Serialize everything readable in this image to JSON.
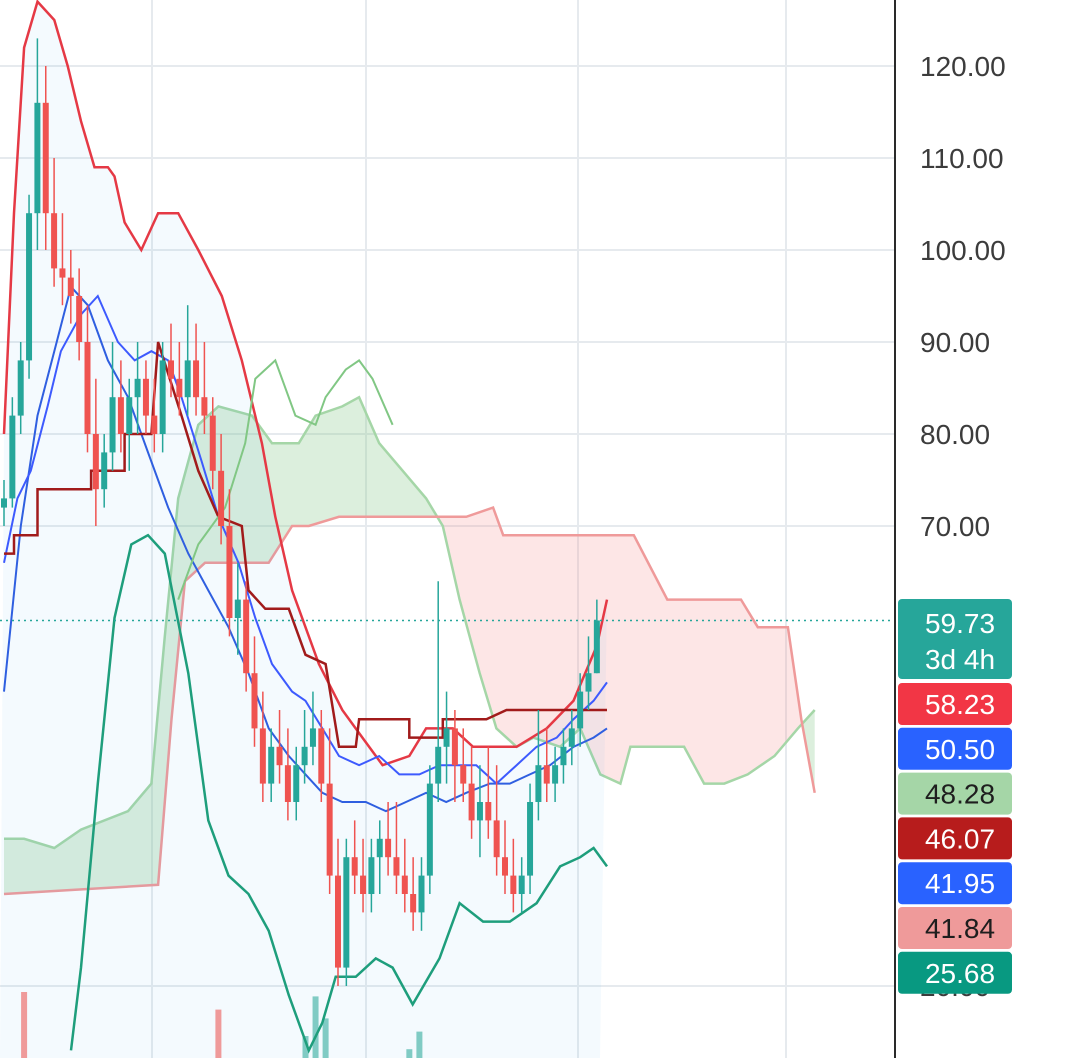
{
  "chart_data": {
    "type": "candlestick",
    "price_axis": {
      "ticks": [
        "120.00",
        "110.00",
        "100.00",
        "90.00",
        "80.00",
        "70.00",
        "20.00"
      ],
      "tick_values": [
        120,
        110,
        100,
        90,
        80,
        70,
        20
      ],
      "range": [
        13,
        127
      ]
    },
    "last_price": {
      "value": "59.73",
      "countdown": "3d 4h",
      "color": "#26a69a"
    },
    "indicator_badges": [
      {
        "value": "58.23",
        "bg": "#f23645",
        "fg": "#ffffff"
      },
      {
        "value": "50.50",
        "bg": "#2962ff",
        "fg": "#ffffff"
      },
      {
        "value": "48.28",
        "bg": "#a5d6a7",
        "fg": "#1e1e1e"
      },
      {
        "value": "46.07",
        "bg": "#b71c1c",
        "fg": "#ffffff"
      },
      {
        "value": "41.95",
        "bg": "#2962ff",
        "fg": "#ffffff"
      },
      {
        "value": "41.84",
        "bg": "#ef9a9a",
        "fg": "#1e1e1e"
      },
      {
        "value": "25.68",
        "bg": "#089981",
        "fg": "#ffffff"
      }
    ],
    "candles": [
      [
        72,
        75,
        70,
        73
      ],
      [
        73,
        84,
        72,
        82
      ],
      [
        82,
        90,
        80,
        88
      ],
      [
        88,
        106,
        86,
        104
      ],
      [
        104,
        123,
        100,
        116
      ],
      [
        116,
        120,
        100,
        104
      ],
      [
        104,
        110,
        96,
        98
      ],
      [
        98,
        104,
        94,
        97
      ],
      [
        97,
        100,
        92,
        95
      ],
      [
        95,
        98,
        88,
        90
      ],
      [
        90,
        94,
        78,
        80
      ],
      [
        80,
        86,
        70,
        74
      ],
      [
        74,
        80,
        72,
        78
      ],
      [
        78,
        90,
        76,
        84
      ],
      [
        84,
        88,
        78,
        80
      ],
      [
        80,
        86,
        76,
        84
      ],
      [
        84,
        90,
        80,
        86
      ],
      [
        86,
        88,
        80,
        82
      ],
      [
        82,
        86,
        78,
        80
      ],
      [
        80,
        90,
        78,
        88
      ],
      [
        88,
        92,
        84,
        86
      ],
      [
        86,
        90,
        82,
        84
      ],
      [
        84,
        94,
        82,
        88
      ],
      [
        88,
        92,
        82,
        84
      ],
      [
        84,
        90,
        80,
        82
      ],
      [
        82,
        84,
        74,
        76
      ],
      [
        76,
        80,
        68,
        70
      ],
      [
        70,
        74,
        58,
        60
      ],
      [
        60,
        66,
        56,
        62
      ],
      [
        62,
        64,
        52,
        54
      ],
      [
        54,
        58,
        46,
        48
      ],
      [
        48,
        52,
        40,
        42
      ],
      [
        42,
        48,
        40,
        46
      ],
      [
        46,
        50,
        42,
        44
      ],
      [
        44,
        48,
        38,
        40
      ],
      [
        40,
        46,
        38,
        44
      ],
      [
        44,
        50,
        42,
        46
      ],
      [
        46,
        52,
        44,
        48
      ],
      [
        48,
        50,
        40,
        42
      ],
      [
        42,
        48,
        30,
        32
      ],
      [
        32,
        36,
        20,
        22
      ],
      [
        22,
        36,
        20,
        34
      ],
      [
        34,
        38,
        30,
        32
      ],
      [
        32,
        36,
        28,
        30
      ],
      [
        30,
        36,
        28,
        34
      ],
      [
        34,
        38,
        30,
        36
      ],
      [
        36,
        40,
        32,
        34
      ],
      [
        34,
        40,
        30,
        32
      ],
      [
        32,
        36,
        28,
        30
      ],
      [
        30,
        34,
        26,
        28
      ],
      [
        28,
        34,
        26,
        32
      ],
      [
        32,
        44,
        30,
        42
      ],
      [
        42,
        64,
        40,
        46
      ],
      [
        46,
        52,
        42,
        48
      ],
      [
        48,
        50,
        40,
        44
      ],
      [
        44,
        48,
        40,
        42
      ],
      [
        42,
        46,
        36,
        38
      ],
      [
        38,
        44,
        34,
        40
      ],
      [
        40,
        46,
        36,
        38
      ],
      [
        38,
        44,
        32,
        34
      ],
      [
        34,
        38,
        30,
        32
      ],
      [
        32,
        36,
        28,
        30
      ],
      [
        30,
        34,
        28,
        32
      ],
      [
        32,
        42,
        30,
        40
      ],
      [
        40,
        50,
        38,
        44
      ],
      [
        44,
        48,
        40,
        42
      ],
      [
        42,
        46,
        40,
        44
      ],
      [
        44,
        48,
        42,
        46
      ],
      [
        46,
        50,
        44,
        48
      ],
      [
        48,
        54,
        46,
        52
      ],
      [
        52,
        58,
        50,
        54
      ],
      [
        54,
        62,
        54,
        59.73
      ]
    ],
    "bb_upper": [
      [
        0,
        80
      ],
      [
        0.3,
        104
      ],
      [
        0.6,
        122
      ],
      [
        1.0,
        127
      ],
      [
        1.5,
        125
      ],
      [
        1.9,
        120
      ],
      [
        2.3,
        114
      ],
      [
        2.7,
        109
      ],
      [
        3.1,
        109
      ],
      [
        3.3,
        108
      ],
      [
        3.6,
        103
      ],
      [
        4.1,
        100
      ],
      [
        4.6,
        104
      ],
      [
        5.2,
        104
      ],
      [
        5.8,
        100
      ],
      [
        6.5,
        95
      ],
      [
        7.1,
        88
      ],
      [
        7.7,
        79
      ],
      [
        8.1,
        71
      ],
      [
        8.6,
        63
      ],
      [
        9.4,
        55
      ],
      [
        10.1,
        50
      ],
      [
        10.7,
        47
      ],
      [
        11.3,
        44
      ],
      [
        12.1,
        45
      ],
      [
        12.6,
        48
      ],
      [
        13.4,
        48
      ],
      [
        14.0,
        46
      ],
      [
        14.6,
        46
      ],
      [
        15.3,
        46
      ],
      [
        16.2,
        48
      ],
      [
        17.0,
        51
      ],
      [
        17.7,
        57
      ],
      [
        18.0,
        62
      ]
    ],
    "bb_middle": [
      [
        0,
        52
      ],
      [
        0.5,
        70
      ],
      [
        1.0,
        82
      ],
      [
        1.5,
        89
      ],
      [
        2.0,
        96
      ],
      [
        2.5,
        94
      ],
      [
        3.1,
        88
      ],
      [
        3.7,
        84
      ],
      [
        4.3,
        78
      ],
      [
        4.9,
        72
      ],
      [
        5.5,
        67
      ],
      [
        6.1,
        63
      ],
      [
        6.7,
        59
      ],
      [
        7.3,
        54
      ],
      [
        7.9,
        48
      ],
      [
        8.5,
        45
      ],
      [
        9.0,
        43
      ],
      [
        9.5,
        41
      ],
      [
        10.1,
        40
      ],
      [
        10.8,
        40
      ],
      [
        11.4,
        39
      ],
      [
        12.0,
        40
      ],
      [
        12.6,
        41
      ],
      [
        13.2,
        40
      ],
      [
        13.8,
        41
      ],
      [
        14.5,
        42
      ],
      [
        15.1,
        42
      ],
      [
        15.7,
        43
      ],
      [
        16.3,
        44
      ],
      [
        17.0,
        46
      ],
      [
        17.6,
        47
      ],
      [
        18.0,
        48
      ]
    ],
    "bb_lower": [
      [
        2.0,
        13
      ],
      [
        2.3,
        22
      ],
      [
        2.8,
        42
      ],
      [
        3.3,
        60
      ],
      [
        3.8,
        68
      ],
      [
        4.3,
        69
      ],
      [
        4.8,
        67
      ],
      [
        5.5,
        54
      ],
      [
        6.1,
        38
      ],
      [
        6.7,
        32
      ],
      [
        7.3,
        30
      ],
      [
        7.9,
        26
      ],
      [
        8.5,
        19
      ],
      [
        9.1,
        13
      ],
      [
        9.5,
        16
      ],
      [
        9.9,
        21
      ],
      [
        10.5,
        21
      ],
      [
        11.1,
        23
      ],
      [
        11.6,
        22
      ],
      [
        12.2,
        18
      ],
      [
        13.0,
        23
      ],
      [
        13.6,
        29
      ],
      [
        14.3,
        27
      ],
      [
        15.1,
        27
      ],
      [
        15.9,
        29
      ],
      [
        16.6,
        33
      ],
      [
        17.2,
        34
      ],
      [
        17.6,
        35
      ],
      [
        18.0,
        33
      ]
    ],
    "tenkan": [
      [
        0,
        66
      ],
      [
        0.4,
        73
      ],
      [
        0.8,
        76
      ],
      [
        1.3,
        83
      ],
      [
        1.7,
        89
      ],
      [
        2.3,
        93
      ],
      [
        2.8,
        95
      ],
      [
        3.4,
        90
      ],
      [
        3.9,
        88
      ],
      [
        4.4,
        89
      ],
      [
        4.9,
        88
      ],
      [
        5.3,
        84
      ],
      [
        5.9,
        77
      ],
      [
        6.4,
        71
      ],
      [
        7.0,
        66
      ],
      [
        7.5,
        60
      ],
      [
        8.0,
        55
      ],
      [
        8.6,
        52
      ],
      [
        9.0,
        51
      ],
      [
        9.5,
        48
      ],
      [
        10.0,
        45
      ],
      [
        10.6,
        44
      ],
      [
        11.2,
        45
      ],
      [
        11.8,
        43
      ],
      [
        12.4,
        43
      ],
      [
        13.0,
        44
      ],
      [
        13.6,
        44
      ],
      [
        14.1,
        44
      ],
      [
        14.7,
        42
      ],
      [
        15.3,
        44
      ],
      [
        15.9,
        46
      ],
      [
        16.5,
        47
      ],
      [
        17.0,
        49
      ],
      [
        17.6,
        51
      ],
      [
        18.0,
        53
      ]
    ],
    "kijun": [
      [
        0,
        67
      ],
      [
        0.3,
        67
      ],
      [
        0.3,
        69
      ],
      [
        1.0,
        69
      ],
      [
        1.0,
        74
      ],
      [
        2.6,
        74
      ],
      [
        2.6,
        76
      ],
      [
        3.6,
        76
      ],
      [
        3.6,
        80
      ],
      [
        4.4,
        80
      ],
      [
        4.6,
        90
      ],
      [
        5.3,
        82
      ],
      [
        5.8,
        76
      ],
      [
        6.4,
        71
      ],
      [
        7.1,
        70
      ],
      [
        7.3,
        63
      ],
      [
        7.8,
        61
      ],
      [
        8.5,
        61
      ],
      [
        9.0,
        56
      ],
      [
        9.6,
        55
      ],
      [
        10.0,
        46
      ],
      [
        10.5,
        46
      ],
      [
        10.6,
        49
      ],
      [
        11.5,
        49
      ],
      [
        12.1,
        49
      ],
      [
        12.1,
        47
      ],
      [
        13.1,
        47
      ],
      [
        13.1,
        49
      ],
      [
        14.4,
        49
      ],
      [
        15.0,
        50
      ],
      [
        18.0,
        50
      ]
    ],
    "lagging": [
      [
        5.2,
        62
      ],
      [
        5.8,
        68
      ],
      [
        6.6,
        72
      ],
      [
        7.2,
        79
      ],
      [
        7.5,
        86
      ],
      [
        8.1,
        88
      ],
      [
        8.7,
        82
      ],
      [
        9.3,
        81
      ],
      [
        9.6,
        84
      ],
      [
        10.2,
        87
      ],
      [
        10.6,
        88
      ],
      [
        11.0,
        86
      ],
      [
        11.6,
        81
      ]
    ],
    "span_a": [
      [
        0,
        36
      ],
      [
        0.6,
        36
      ],
      [
        1.5,
        35
      ],
      [
        2.3,
        37
      ],
      [
        3.7,
        39
      ],
      [
        4.4,
        42
      ],
      [
        4.8,
        58
      ],
      [
        5.2,
        73
      ],
      [
        5.8,
        81
      ],
      [
        6.4,
        83
      ],
      [
        7.4,
        82
      ],
      [
        8.0,
        79
      ],
      [
        8.8,
        79
      ],
      [
        9.3,
        82
      ],
      [
        10.1,
        83
      ],
      [
        10.6,
        84
      ],
      [
        11.2,
        79
      ],
      [
        11.9,
        76
      ],
      [
        12.6,
        73
      ],
      [
        13.1,
        70
      ],
      [
        13.6,
        62
      ],
      [
        14.2,
        54
      ],
      [
        14.7,
        48
      ],
      [
        15.3,
        46
      ],
      [
        15.8,
        47
      ],
      [
        16.6,
        46
      ],
      [
        17.2,
        48
      ],
      [
        17.8,
        43
      ],
      [
        18.4,
        42
      ],
      [
        18.7,
        46
      ],
      [
        19.6,
        46
      ],
      [
        20.3,
        46
      ],
      [
        20.9,
        42
      ],
      [
        21.5,
        42
      ],
      [
        22.2,
        43
      ],
      [
        23.0,
        45
      ],
      [
        23.7,
        48
      ],
      [
        24.2,
        50
      ]
    ],
    "span_b": [
      [
        0,
        30
      ],
      [
        4.6,
        31
      ],
      [
        5.0,
        49
      ],
      [
        5.4,
        64
      ],
      [
        6.0,
        66
      ],
      [
        6.9,
        66
      ],
      [
        7.9,
        66
      ],
      [
        8.6,
        70
      ],
      [
        9.1,
        70
      ],
      [
        10.0,
        71
      ],
      [
        11.2,
        71
      ],
      [
        12.5,
        71
      ],
      [
        13.8,
        71
      ],
      [
        14.6,
        72
      ],
      [
        14.9,
        69
      ],
      [
        15.6,
        69
      ],
      [
        16.8,
        69
      ],
      [
        18.0,
        69
      ],
      [
        18.8,
        69
      ],
      [
        19.8,
        62
      ],
      [
        20.8,
        62
      ],
      [
        22.0,
        62
      ],
      [
        22.5,
        59
      ],
      [
        23.4,
        59
      ],
      [
        23.8,
        49
      ],
      [
        24.2,
        41
      ]
    ],
    "volume": [
      {
        "x": 0.6,
        "h": 3.0,
        "c": "#ef9a9a"
      },
      {
        "x": 6.4,
        "h": 2.2,
        "c": "#ef9a9a"
      },
      {
        "x": 9.0,
        "h": 1.0,
        "c": "#80cbc4"
      },
      {
        "x": 9.3,
        "h": 2.8,
        "c": "#80cbc4"
      },
      {
        "x": 9.6,
        "h": 1.8,
        "c": "#80cbc4"
      },
      {
        "x": 12.1,
        "h": 0.4,
        "c": "#80cbc4"
      },
      {
        "x": 12.4,
        "h": 1.2,
        "c": "#80cbc4"
      }
    ]
  }
}
